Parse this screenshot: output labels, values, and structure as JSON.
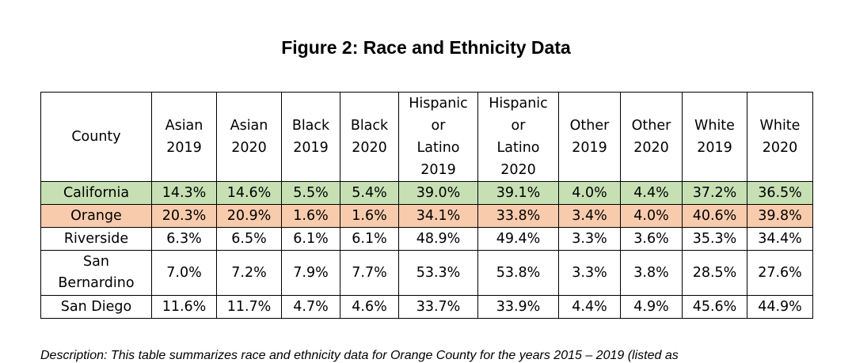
{
  "title": "Figure 2: Race and Ethnicity Data",
  "table": {
    "headers": [
      "County",
      "Asian\n2019",
      "Asian\n2020",
      "Black\n2019",
      "Black\n2020",
      "Hispanic\nor\nLatino\n2019",
      "Hispanic\nor\nLatino\n2020",
      "Other\n2019",
      "Other\n2020",
      "White\n2019",
      "White\n2020"
    ],
    "rows": [
      {
        "county": "California",
        "values": [
          "14.3%",
          "14.6%",
          "5.5%",
          "5.4%",
          "39.0%",
          "39.1%",
          "4.0%",
          "4.4%",
          "37.2%",
          "36.5%"
        ],
        "highlight": "#c6e0b4"
      },
      {
        "county": "Orange",
        "values": [
          "20.3%",
          "20.9%",
          "1.6%",
          "1.6%",
          "34.1%",
          "33.8%",
          "3.4%",
          "4.0%",
          "40.6%",
          "39.8%"
        ],
        "highlight": "#f8cbad"
      },
      {
        "county": "Riverside",
        "values": [
          "6.3%",
          "6.5%",
          "6.1%",
          "6.1%",
          "48.9%",
          "49.4%",
          "3.3%",
          "3.6%",
          "35.3%",
          "34.4%"
        ],
        "highlight": "#ffffff"
      },
      {
        "county": "San\nBernardino",
        "values": [
          "7.0%",
          "7.2%",
          "7.9%",
          "7.7%",
          "53.3%",
          "53.8%",
          "3.3%",
          "3.8%",
          "28.5%",
          "27.6%"
        ],
        "highlight": "#ffffff"
      },
      {
        "county": "San Diego",
        "values": [
          "11.6%",
          "11.7%",
          "4.7%",
          "4.6%",
          "33.7%",
          "33.9%",
          "4.4%",
          "4.9%",
          "45.6%",
          "44.9%"
        ],
        "highlight": "#ffffff"
      }
    ]
  },
  "description": "Description: This table summarizes race and ethnicity data for Orange County for the years 2015 – 2019 (listed as"
}
